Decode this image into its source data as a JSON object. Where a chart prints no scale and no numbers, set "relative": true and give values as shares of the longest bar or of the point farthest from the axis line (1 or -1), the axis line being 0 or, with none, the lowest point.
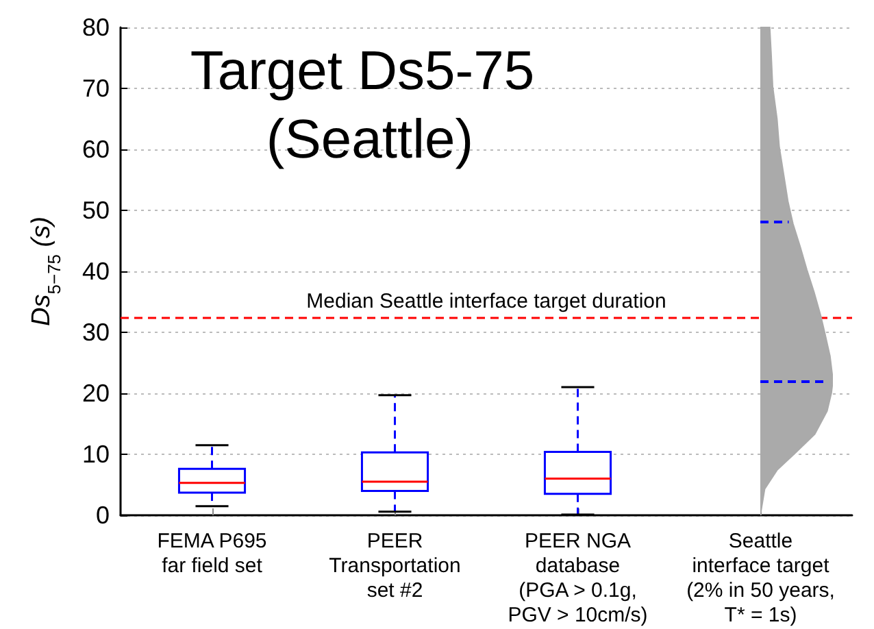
{
  "chart_data": [
    {
      "type": "box",
      "title": "Target Ds5-75 (Seattle)",
      "ylabel": "Ds$_{5−75}$ (s)",
      "categories": [
        "FEMA P695\nfar field set",
        "PEER\nTransportation\nset #2",
        "PEER NGA\ndatabase\n(PGA > 0.1g,\nPGV > 10cm/s)",
        "Seattle\ninterface target\n(2% in 50 years,\nT* = 1s)"
      ],
      "ylim": [
        0,
        80
      ],
      "yticks": [
        0,
        10,
        20,
        30,
        40,
        50,
        60,
        70,
        80
      ],
      "grid": "y",
      "series": [
        {
          "color": "#0000ff",
          "boxes": [
            {
              "low": 1.5,
              "q1": 3.7,
              "median": 5.3,
              "q3": 7.6,
              "high": 11.5
            },
            {
              "low": 0.6,
              "q1": 4.0,
              "median": 5.5,
              "q3": 10.3,
              "high": 19.7
            },
            {
              "low": 0.1,
              "q1": 3.5,
              "median": 6.0,
              "q3": 10.4,
              "high": 21.0
            },
            null
          ]
        }
      ],
      "ref_lines": [
        {
          "axis": "y",
          "value": 32.5,
          "label": "Median Seattle interface target duration",
          "color": "#ff0000",
          "line_style": "dashed"
        }
      ]
    },
    {
      "type": "area",
      "orientation": "horizontal",
      "relative": true,
      "ylim": [
        0,
        80
      ],
      "tick_labels": false,
      "x": [
        0,
        4.3,
        7.4,
        10.3,
        13.3,
        17.1,
        20.1,
        22.2,
        26.1,
        29.8,
        32.8,
        36.6,
        40.3,
        44.0,
        47.8,
        51.5,
        56.0,
        60.5,
        65.0,
        70.3,
        75.5,
        80
      ],
      "series": [
        {
          "color": "#aaaaaa",
          "values": [
            0,
            0.06,
            0.23,
            0.49,
            0.75,
            0.92,
            0.98,
            1,
            0.96,
            0.89,
            0.83,
            0.74,
            0.64,
            0.55,
            0.45,
            0.38,
            0.32,
            0.26,
            0.23,
            0.17,
            0.15,
            0.13
          ]
        }
      ],
      "ref_lines": [
        {
          "axis": "y",
          "value": 21.9,
          "color": "#0000ff",
          "line_style": "dashed"
        },
        {
          "axis": "y",
          "value": 48.1,
          "color": "#0000ff",
          "line_style": "dashed"
        }
      ]
    }
  ]
}
